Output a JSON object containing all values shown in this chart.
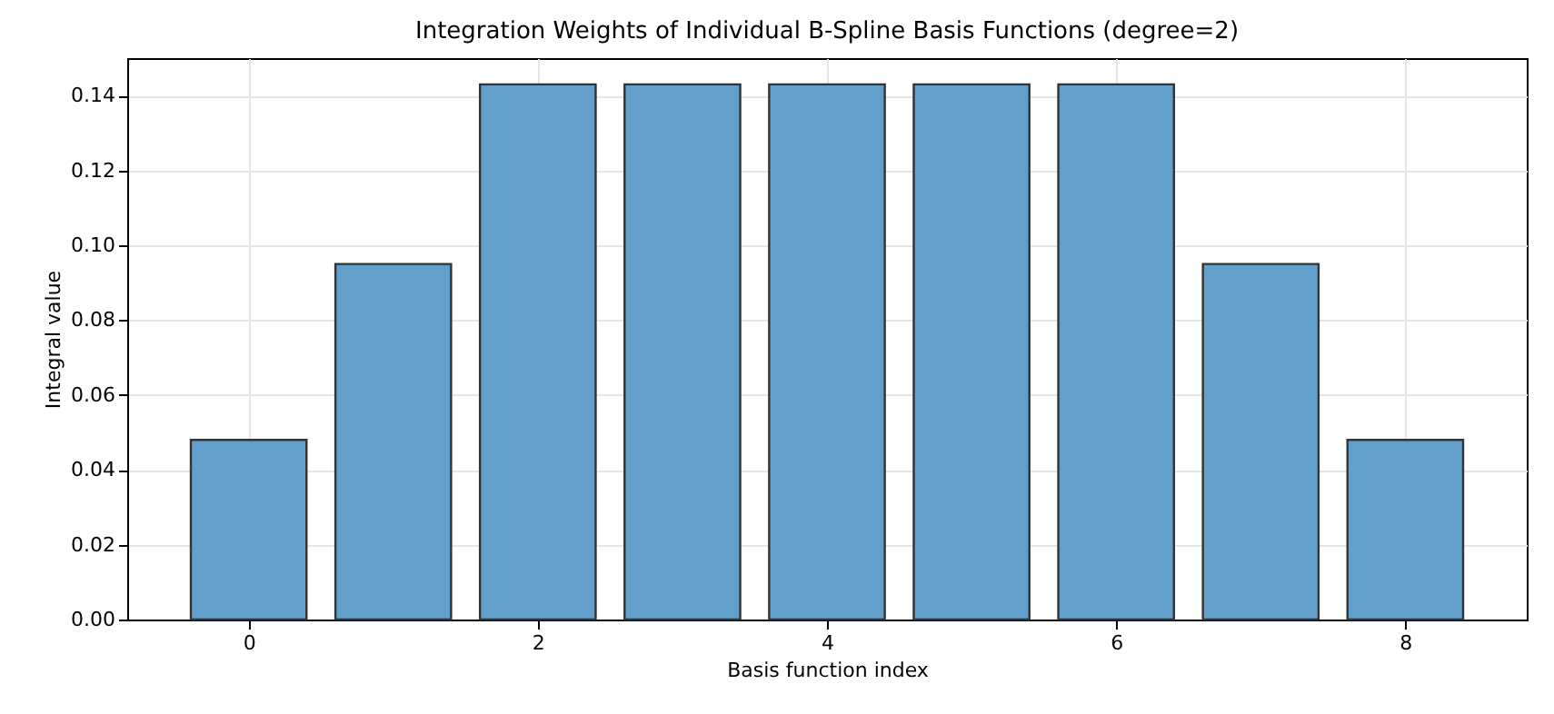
{
  "chart_data": {
    "type": "bar",
    "title": "Integration Weights of Individual B-Spline Basis Functions (degree=2)",
    "xlabel": "Basis function index",
    "ylabel": "Integral value",
    "x": [
      0,
      1,
      2,
      3,
      4,
      5,
      6,
      7,
      8
    ],
    "values": [
      0.048,
      0.095,
      0.143,
      0.143,
      0.143,
      0.143,
      0.143,
      0.095,
      0.048
    ],
    "color": "#62a0cb",
    "xlim": [
      -0.84,
      8.84
    ],
    "xticks": [
      0,
      2,
      4,
      6,
      8
    ],
    "ylim": [
      0,
      0.15
    ],
    "yticks": [
      {
        "value": 0,
        "label": "0.00"
      },
      {
        "value": 0.02,
        "label": "0.02"
      },
      {
        "value": 0.04,
        "label": "0.04"
      },
      {
        "value": 0.06,
        "label": "0.06"
      },
      {
        "value": 0.08,
        "label": "0.08"
      },
      {
        "value": 0.1,
        "label": "0.10"
      },
      {
        "value": 0.12,
        "label": "0.12"
      },
      {
        "value": 0.14,
        "label": "0.14"
      }
    ],
    "grid": true
  }
}
